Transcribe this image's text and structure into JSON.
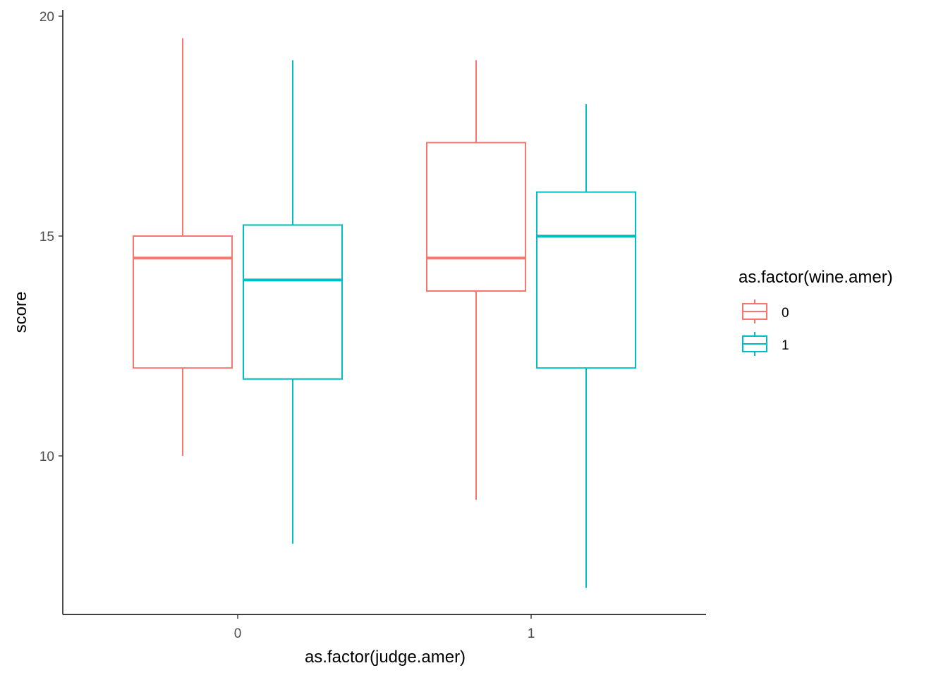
{
  "chart_data": {
    "type": "boxplot",
    "title": "",
    "xlabel": "as.factor(judge.amer)",
    "ylabel": "score",
    "categories": [
      "0",
      "1"
    ],
    "ylim": [
      7,
      20
    ],
    "yticks": [
      10,
      15,
      20
    ],
    "grid": false,
    "legend": {
      "title": "as.factor(wine.amer)",
      "position": "right",
      "entries": [
        "0",
        "1"
      ]
    },
    "series": [
      {
        "name": "0",
        "color": "#F8766D",
        "boxes": [
          {
            "category": "0",
            "min": 10,
            "q1": 12,
            "median": 14.5,
            "q3": 15,
            "max": 19.5
          },
          {
            "category": "1",
            "min": 9,
            "q1": 13.75,
            "median": 14.5,
            "q3": 17.125,
            "max": 19
          }
        ]
      },
      {
        "name": "1",
        "color": "#00BFC4",
        "boxes": [
          {
            "category": "0",
            "min": 8,
            "q1": 11.75,
            "median": 14,
            "q3": 15.25,
            "max": 19
          },
          {
            "category": "1",
            "min": 7,
            "q1": 12,
            "median": 15,
            "q3": 16,
            "max": 18
          }
        ]
      }
    ]
  }
}
